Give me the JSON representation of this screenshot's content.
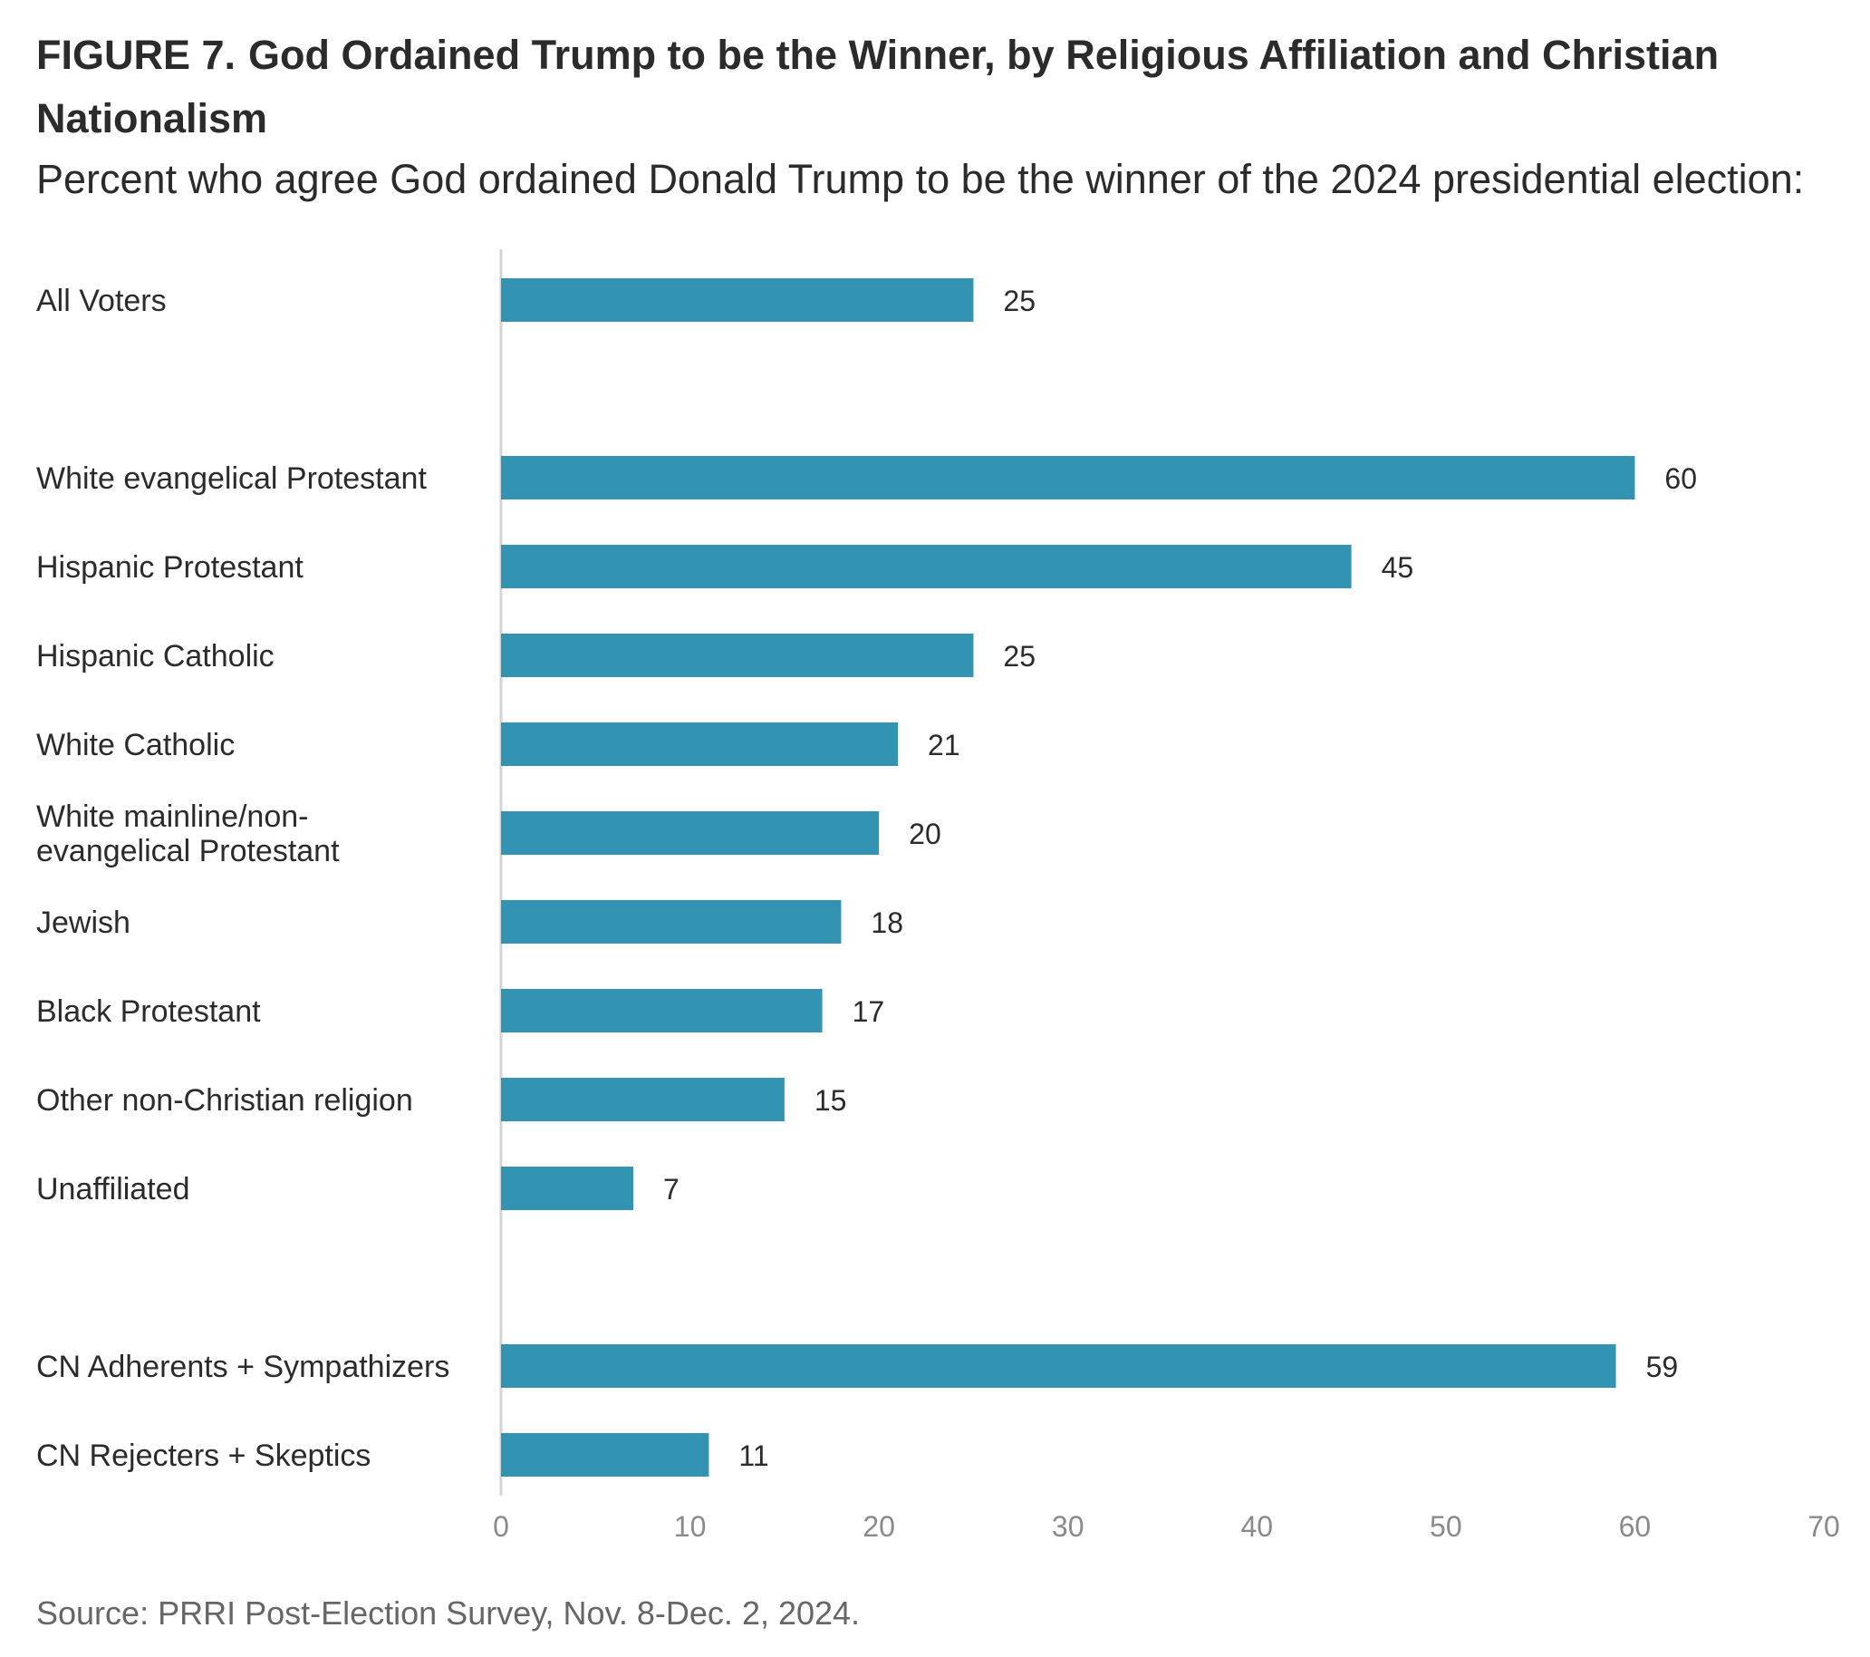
{
  "header": {
    "figure_label": "FIGURE 7.",
    "title": "God Ordained Trump to be the Winner, by Religious Affiliation and Christian Nationalism",
    "subtitle": "Percent who agree God ordained Donald Trump to be the winner of the 2024 presidential election:"
  },
  "chart_data": {
    "type": "bar",
    "orientation": "horizontal",
    "categories": [
      "All Voters",
      "White evangelical Protestant",
      "Hispanic Protestant",
      "Hispanic Catholic",
      "White Catholic",
      "White mainline/non-evangelical Protestant",
      "Jewish",
      "Black Protestant",
      "Other non-Christian religion",
      "Unaffiliated",
      "CN Adherents + Sympathizers",
      "CN Rejecters + Skeptics"
    ],
    "category_label_lines": [
      [
        "All Voters"
      ],
      [
        "White evangelical Protestant"
      ],
      [
        "Hispanic Protestant"
      ],
      [
        "Hispanic Catholic"
      ],
      [
        "White Catholic"
      ],
      [
        "White mainline/non-",
        "evangelical Protestant"
      ],
      [
        "Jewish"
      ],
      [
        "Black Protestant"
      ],
      [
        "Other non-Christian religion"
      ],
      [
        "Unaffiliated"
      ],
      [
        "CN Adherents + Sympathizers"
      ],
      [
        "CN Rejecters + Skeptics"
      ]
    ],
    "values": [
      25,
      60,
      45,
      25,
      21,
      20,
      18,
      17,
      15,
      7,
      59,
      11
    ],
    "groups": [
      [
        "All Voters"
      ],
      [
        "White evangelical Protestant",
        "Hispanic Protestant",
        "Hispanic Catholic",
        "White Catholic",
        "White mainline/non-evangelical Protestant",
        "Jewish",
        "Black Protestant",
        "Other non-Christian religion",
        "Unaffiliated"
      ],
      [
        "CN Adherents + Sympathizers",
        "CN Rejecters + Skeptics"
      ]
    ],
    "xlim": [
      0,
      70
    ],
    "xticks": [
      0,
      10,
      20,
      30,
      40,
      50,
      60,
      70
    ],
    "xlabel": "",
    "ylabel": "",
    "grid": false,
    "legend": "none",
    "bar_color": "#3293b3",
    "data_labels": true
  },
  "footer": {
    "source": "Source: PRRI Post-Election Survey, Nov. 8-Dec. 2, 2024."
  }
}
